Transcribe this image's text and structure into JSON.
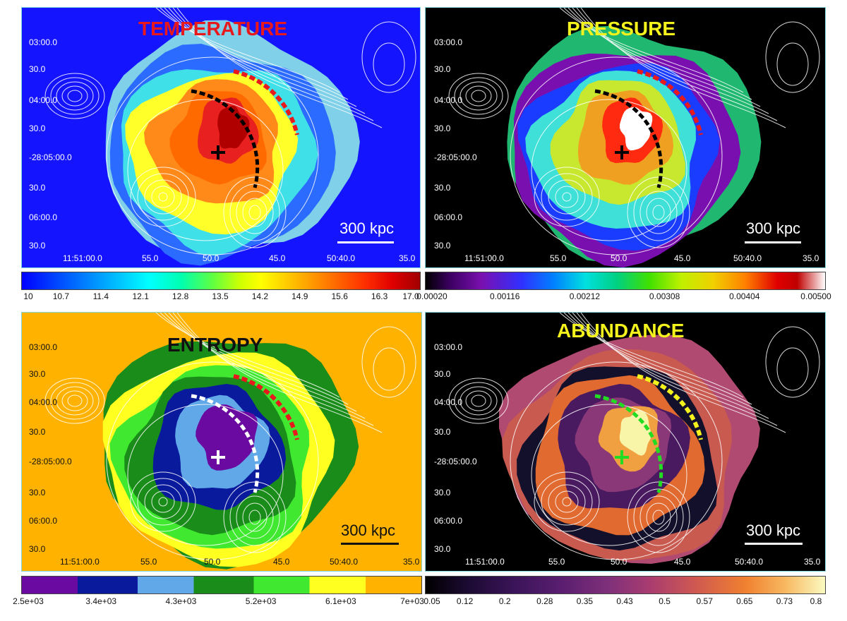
{
  "panels": [
    {
      "title": "TEMPERATURE",
      "title_color": "#e8191c",
      "dec_ticks": [
        "03:00.0",
        "30.0",
        "04:00.0",
        "30.0",
        "-28:05:00.0",
        "30.0",
        "06:00.0",
        "30.0"
      ],
      "ra_ticks": [
        "11:51:00.0",
        "55.0",
        "50.0",
        "45.0",
        "50:40.0",
        "35.0"
      ],
      "scale_label": "300 kpc",
      "colors": {
        "bg": "#1414ff",
        "c1": "#2b6bff",
        "c2": "#3fe0e8",
        "c3": "#ffff2a",
        "c4": "#ff8a1a",
        "c5": "#ff6a00",
        "c6": "#e82020",
        "c7": "#b00000",
        "c8": "#7fd0e8"
      },
      "colorbar": {
        "labels": [
          "10",
          "10.7",
          "11.4",
          "12.1",
          "12.8",
          "13.5",
          "14.2",
          "14.9",
          "15.6",
          "16.3",
          "17.0"
        ]
      }
    },
    {
      "title": "PRESSURE",
      "title_color": "#f4f21c",
      "dec_ticks": [
        "03:00.0",
        "30.0",
        "04:00.0",
        "30.0",
        "-28:05:00.0",
        "30.0",
        "06:00.0",
        "30.0"
      ],
      "ra_ticks": [
        "11:51:00.0",
        "55.0",
        "50.0",
        "45.0",
        "50:40.0",
        "35.0"
      ],
      "scale_label": "300 kpc",
      "colors": {
        "bg": "#000000",
        "c1": "#7a0fb0",
        "c2": "#1a3cff",
        "c3": "#3ee0d8",
        "c4": "#c8e830",
        "c5": "#f0a020",
        "c6": "#ff2a10",
        "c7": "#ffffff",
        "c8": "#20b870"
      },
      "colorbar": {
        "labels": [
          "0.00020",
          "0.00116",
          "0.00212",
          "0.00308",
          "0.00404",
          "0.00500"
        ]
      }
    },
    {
      "title": "ENTROPY",
      "title_color": "#111111",
      "dec_ticks": [
        "03:00.0",
        "30.0",
        "04:00.0",
        "30.0",
        "-28:05:00.0",
        "30.0",
        "06:00.0",
        "30.0"
      ],
      "ra_ticks": [
        "11:51:00.0",
        "55.0",
        "50.0",
        "45.0",
        "50:40.0",
        "35.0"
      ],
      "scale_label": "300 kpc",
      "colors": {
        "bg": "#ffb300",
        "c1": "#ffff20",
        "c2": "#40e830",
        "c3": "#1a8c1a",
        "c4": "#0a1a9c",
        "c5": "#60a8e8",
        "c6": "#6a0aa0",
        "c7": "#6a0aa0",
        "c8": "#1a8c1a"
      },
      "colorbar": {
        "labels": [
          "2.5e+03",
          "3.4e+03",
          "4.3e+03",
          "5.2e+03",
          "6.1e+03",
          "7e+03"
        ]
      }
    },
    {
      "title": "ABUNDANCE",
      "title_color": "#f4f21c",
      "dec_ticks": [
        "03:00.0",
        "30.0",
        "04:00.0",
        "30.0",
        "-28:05:00.0",
        "30.0",
        "06:00.0",
        "30.0"
      ],
      "ra_ticks": [
        "11:51:00.0",
        "55.0",
        "50.0",
        "45.0",
        "50:40.0",
        "35.0"
      ],
      "scale_label": "300 kpc",
      "colors": {
        "bg": "#000000",
        "c1": "#c85a50",
        "c2": "#12102a",
        "c3": "#e06a30",
        "c4": "#4a1a60",
        "c5": "#8a3878",
        "c6": "#f0a040",
        "c7": "#f8f4a8",
        "c8": "#b04a70"
      },
      "colorbar": {
        "labels": [
          "0.05",
          "0.12",
          "0.2",
          "0.28",
          "0.35",
          "0.43",
          "0.5",
          "0.57",
          "0.65",
          "0.73",
          "0.8"
        ]
      }
    }
  ]
}
